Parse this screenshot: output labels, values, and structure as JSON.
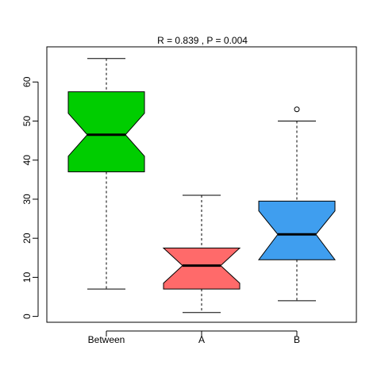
{
  "chart_data": {
    "type": "boxplot",
    "title": "R =  0.839 ,  P =  0.004",
    "xlabel": "",
    "ylabel": "",
    "ylim": [
      -1.5,
      69
    ],
    "yticks": [
      0,
      10,
      20,
      30,
      40,
      50,
      60
    ],
    "grid": false,
    "notched": true,
    "categories": [
      "Between",
      "A",
      "B"
    ],
    "boxes": [
      {
        "category": "Between",
        "color": "#00CD00",
        "whisker_low": 7,
        "q1": 37,
        "median": 46.5,
        "q3": 57.5,
        "whisker_high": 66,
        "notch_low": 41,
        "notch_high": 52,
        "outliers": []
      },
      {
        "category": "A",
        "color": "#FF6A6A",
        "whisker_low": 1,
        "q1": 7,
        "median": 13,
        "q3": 17.5,
        "whisker_high": 31,
        "notch_low": 8.5,
        "notch_high": 17.5,
        "outliers": []
      },
      {
        "category": "B",
        "color": "#3F9EEF",
        "whisker_low": 4,
        "q1": 14.5,
        "median": 21,
        "q3": 29.5,
        "whisker_high": 50,
        "notch_low": 14.5,
        "notch_high": 27,
        "outliers": [
          53
        ]
      }
    ]
  }
}
